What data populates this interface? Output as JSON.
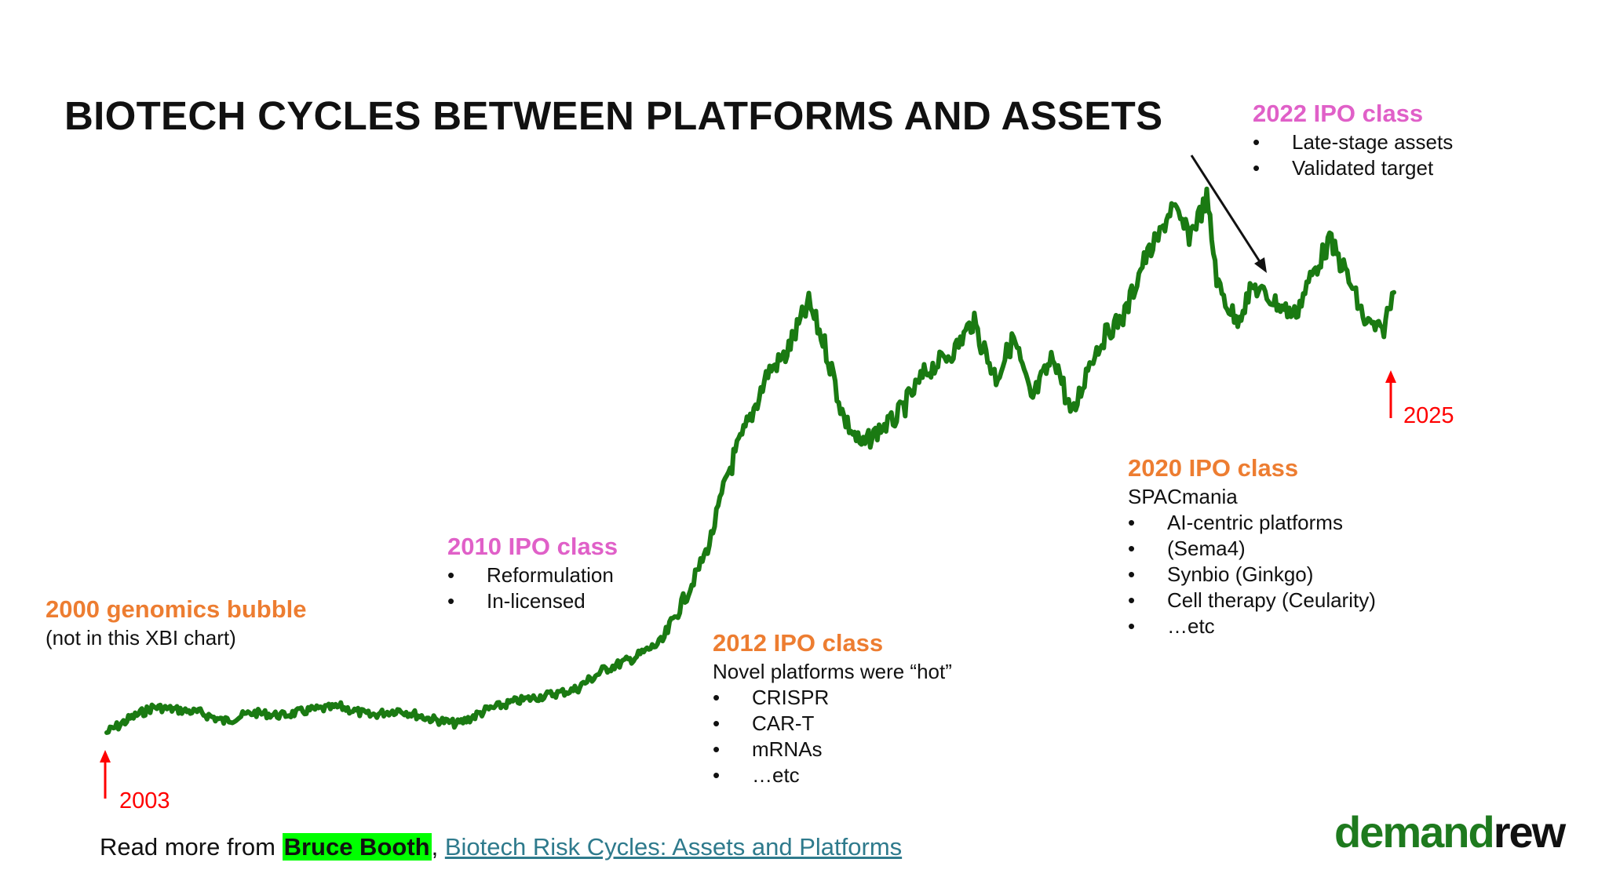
{
  "title": "BIOTECH CYCLES BETWEEN PLATFORMS AND ASSETS",
  "colors": {
    "line": "#1A7A12",
    "orange_heading": "#ED7D31",
    "pink_heading": "#E060C8",
    "arrow_red": "#FF0000",
    "link": "#2E7A8C",
    "highlight": "#00FF00",
    "logo_green": "#1E7A1E"
  },
  "annotations": {
    "genomics": {
      "heading": "2000 genomics bubble",
      "sub": "(not in this XBI chart)"
    },
    "ipo2010": {
      "heading": "2010 IPO class",
      "bullets": [
        "Reformulation",
        "In-licensed"
      ]
    },
    "ipo2012": {
      "heading": "2012 IPO class",
      "sub": "Novel platforms were “hot”",
      "bullets": [
        "CRISPR",
        "CAR-T",
        "mRNAs",
        "…etc"
      ]
    },
    "ipo2020": {
      "heading": "2020 IPO class",
      "sub": "SPACmania",
      "bullets": [
        "AI-centric platforms",
        "(Sema4)",
        "Synbio (Ginkgo)",
        "Cell therapy (Ceularity)",
        "…etc"
      ]
    },
    "ipo2022": {
      "heading": "2022 IPO class",
      "bullets": [
        "Late-stage assets",
        "Validated target"
      ]
    }
  },
  "markers": {
    "start": "2003",
    "end": "2025"
  },
  "footer": {
    "prefix": "Read more from ",
    "highlight": "Bruce Booth",
    "separator": ", ",
    "link_text": "Biotech Risk Cycles: Assets and Platforms "
  },
  "logo": {
    "part1": "demand",
    "part2": "rew"
  },
  "chart_data": {
    "type": "line",
    "title": "",
    "xlabel": "",
    "ylabel": "",
    "x_range": [
      2003.0,
      2025.0
    ],
    "y_range": [
      0,
      100
    ],
    "series": [
      {
        "x": [
          2003.0,
          2003.4,
          2003.8,
          2004.2,
          2004.6,
          2005.0,
          2005.5,
          2006.0,
          2006.5,
          2007.0,
          2007.5,
          2008.0,
          2008.5,
          2009.0,
          2009.5,
          2010.0,
          2010.5,
          2011.0,
          2011.5,
          2012.0,
          2012.5,
          2013.0,
          2013.3,
          2013.6,
          2014.0,
          2014.3,
          2014.6,
          2015.0,
          2015.3,
          2015.6,
          2015.9,
          2016.2,
          2016.5,
          2017.0,
          2017.5,
          2017.8,
          2018.2,
          2018.5,
          2018.8,
          2019.2,
          2019.5,
          2019.8,
          2020.1,
          2020.4,
          2020.7,
          2021.0,
          2021.2,
          2021.5,
          2021.8,
          2022.0,
          2022.3,
          2022.6,
          2023.0,
          2023.3,
          2023.6,
          2023.9,
          2024.2,
          2024.5,
          2024.8,
          2025.0
        ],
        "y": [
          0,
          2.5,
          4.5,
          4.0,
          3.5,
          2.0,
          3.5,
          3.0,
          4.0,
          4.5,
          3.0,
          4.0,
          2.5,
          1.5,
          4.0,
          5.5,
          6.5,
          7.5,
          11.0,
          13.0,
          16.0,
          26.0,
          33.0,
          45.0,
          55.0,
          63.0,
          66.0,
          75.0,
          67.0,
          55.0,
          50.0,
          53.0,
          55.0,
          63.0,
          67.0,
          72.0,
          62.0,
          69.0,
          58.0,
          66.0,
          55.0,
          65.0,
          70.0,
          73.0,
          82.0,
          87.0,
          92.0,
          87.0,
          93.0,
          78.0,
          72.0,
          78.0,
          75.0,
          73.0,
          80.0,
          86.0,
          80.0,
          72.0,
          70.0,
          77.0
        ]
      }
    ],
    "grid": false,
    "legend": "none"
  }
}
